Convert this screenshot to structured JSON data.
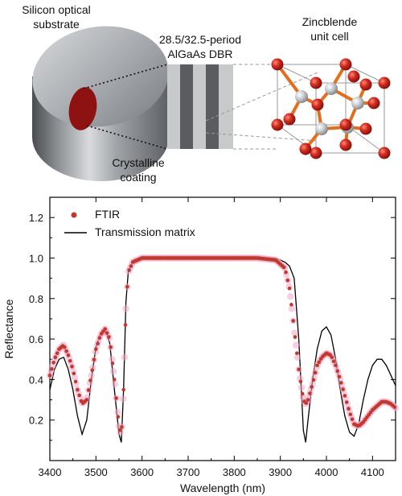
{
  "diagram": {
    "substrate_label_line1": "Silicon optical",
    "substrate_label_line2": "substrate",
    "dbr_label_line1": "28.5/32.5-period",
    "dbr_label_line2": "AlGaAs DBR",
    "cell_label_line1": "Zincblende",
    "cell_label_line2": "unit cell",
    "coating_label_line1": "Crystalline",
    "coating_label_line2": "coating",
    "colors": {
      "coating": "#8e1212",
      "atom_red": "#d22a1f",
      "atom_grey": "#bfc3c8",
      "bond": "#e0701e"
    }
  },
  "chart_data": {
    "type": "line",
    "title": "",
    "xlabel": "Wavelength (nm)",
    "ylabel": "Reflectance",
    "xlim": [
      3400,
      4150
    ],
    "ylim": [
      0,
      1.3
    ],
    "x_ticks": [
      3400,
      3500,
      3600,
      3700,
      3800,
      3900,
      4000,
      4100
    ],
    "y_ticks": [
      0.2,
      0.4,
      0.6,
      0.8,
      1.0,
      1.2
    ],
    "legend_placement": "top-left",
    "grid": false,
    "series": [
      {
        "name": "FTIR",
        "style": "markers",
        "color": "#c0392b",
        "x": [
          3400,
          3410,
          3420,
          3430,
          3440,
          3450,
          3460,
          3470,
          3480,
          3490,
          3500,
          3510,
          3520,
          3530,
          3540,
          3550,
          3555,
          3560,
          3565,
          3570,
          3580,
          3590,
          3600,
          3650,
          3700,
          3750,
          3800,
          3850,
          3890,
          3910,
          3920,
          3930,
          3940,
          3950,
          3955,
          3960,
          3970,
          3980,
          3990,
          4000,
          4010,
          4020,
          4030,
          4040,
          4050,
          4060,
          4070,
          4080,
          4090,
          4100,
          4110,
          4120,
          4130,
          4140,
          4150
        ],
        "y": [
          0.42,
          0.5,
          0.55,
          0.57,
          0.52,
          0.45,
          0.35,
          0.28,
          0.3,
          0.42,
          0.55,
          0.62,
          0.65,
          0.6,
          0.4,
          0.17,
          0.12,
          0.35,
          0.75,
          0.93,
          0.98,
          0.99,
          1.0,
          1.0,
          1.0,
          1.0,
          1.0,
          1.0,
          0.99,
          0.95,
          0.85,
          0.65,
          0.45,
          0.3,
          0.28,
          0.3,
          0.38,
          0.47,
          0.51,
          0.53,
          0.52,
          0.47,
          0.4,
          0.32,
          0.24,
          0.18,
          0.17,
          0.19,
          0.22,
          0.25,
          0.27,
          0.29,
          0.29,
          0.28,
          0.26
        ]
      },
      {
        "name": "Transmission matrix",
        "style": "line",
        "color": "#000000",
        "x": [
          3400,
          3410,
          3420,
          3430,
          3440,
          3450,
          3460,
          3470,
          3480,
          3490,
          3500,
          3510,
          3520,
          3530,
          3540,
          3550,
          3555,
          3560,
          3565,
          3570,
          3580,
          3590,
          3600,
          3650,
          3700,
          3750,
          3800,
          3850,
          3890,
          3900,
          3910,
          3920,
          3930,
          3940,
          3950,
          3955,
          3960,
          3970,
          3980,
          3990,
          4000,
          4010,
          4020,
          4030,
          4040,
          4050,
          4060,
          4070,
          4080,
          4090,
          4100,
          4110,
          4120,
          4130,
          4140,
          4150
        ],
        "y": [
          0.35,
          0.45,
          0.5,
          0.51,
          0.45,
          0.35,
          0.22,
          0.13,
          0.2,
          0.4,
          0.56,
          0.63,
          0.65,
          0.58,
          0.35,
          0.13,
          0.09,
          0.35,
          0.78,
          0.93,
          0.98,
          0.99,
          1.0,
          1.0,
          1.0,
          1.0,
          1.0,
          1.0,
          1.0,
          0.99,
          0.98,
          0.96,
          0.9,
          0.6,
          0.15,
          0.09,
          0.2,
          0.4,
          0.55,
          0.64,
          0.66,
          0.62,
          0.5,
          0.35,
          0.22,
          0.14,
          0.12,
          0.18,
          0.3,
          0.4,
          0.47,
          0.5,
          0.5,
          0.47,
          0.42,
          0.37
        ]
      }
    ]
  }
}
